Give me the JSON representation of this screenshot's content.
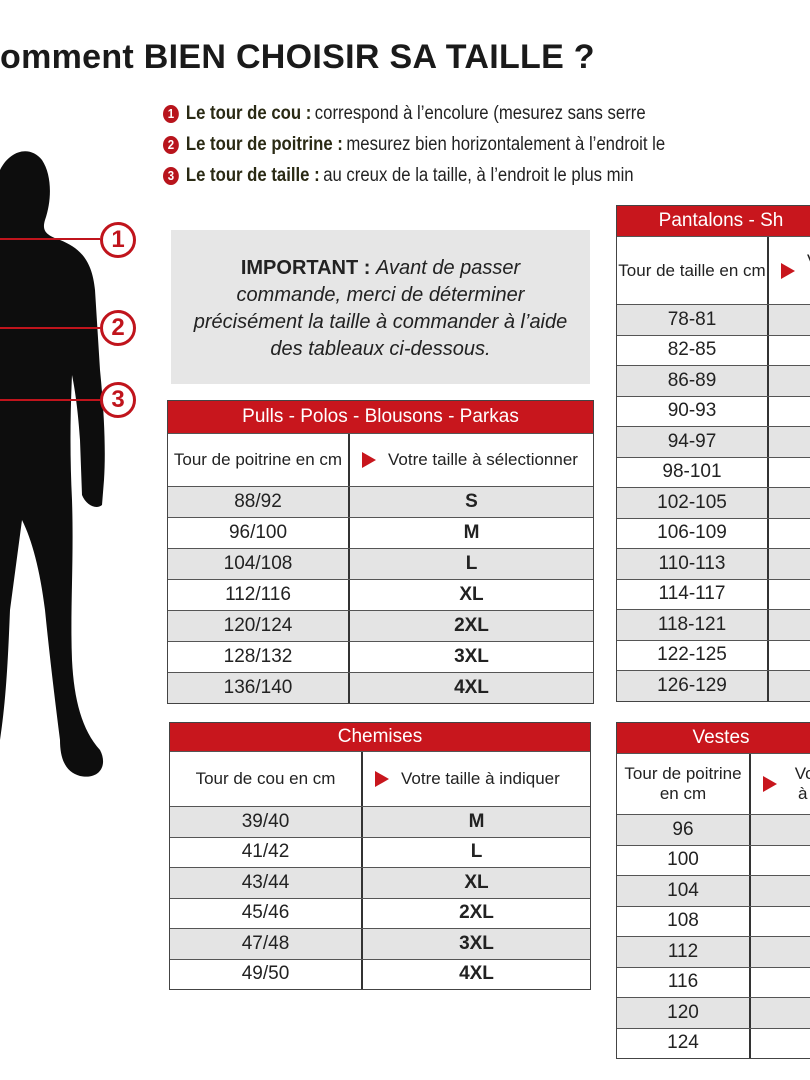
{
  "title": "omment BIEN CHOISIR SA TAILLE ?",
  "definitions": [
    {
      "num": "1",
      "label": "Le tour de cou :",
      "text": "correspond à l’encolure (mesurez sans serre"
    },
    {
      "num": "2",
      "label": "Le tour de poitrine :",
      "text": "mesurez bien horizontalement à l’endroit le"
    },
    {
      "num": "3",
      "label": "Le tour de taille :",
      "text": "au creux de la taille, à l’endroit le plus min"
    }
  ],
  "markers": [
    "1",
    "2",
    "3"
  ],
  "important": {
    "label": "IMPORTANT :",
    "text": "Avant de passer commande, merci de déterminer précisément la taille à commander à l’aide des tableaux ci-dessous."
  },
  "tables": {
    "pulls": {
      "title": "Pulls - Polos - Blousons - Parkas",
      "col1": "Tour de poitrine en cm",
      "col2": "Votre taille à sélectionner",
      "rows": [
        [
          "88/92",
          "S"
        ],
        [
          "96/100",
          "M"
        ],
        [
          "104/108",
          "L"
        ],
        [
          "112/116",
          "XL"
        ],
        [
          "120/124",
          "2XL"
        ],
        [
          "128/132",
          "3XL"
        ],
        [
          "136/140",
          "4XL"
        ]
      ]
    },
    "chemises": {
      "title": "Chemises",
      "col1": "Tour de cou en cm",
      "col2": "Votre taille à indiquer",
      "rows": [
        [
          "39/40",
          "M"
        ],
        [
          "41/42",
          "L"
        ],
        [
          "43/44",
          "XL"
        ],
        [
          "45/46",
          "2XL"
        ],
        [
          "47/48",
          "3XL"
        ],
        [
          "49/50",
          "4XL"
        ]
      ]
    },
    "pantalons": {
      "title": "Pantalons - Sh",
      "col1": "Tour de taille en cm",
      "col2": "Vo à",
      "rows": [
        [
          "78-81",
          ""
        ],
        [
          "82-85",
          ""
        ],
        [
          "86-89",
          ""
        ],
        [
          "90-93",
          ""
        ],
        [
          "94-97",
          ""
        ],
        [
          "98-101",
          ""
        ],
        [
          "102-105",
          ""
        ],
        [
          "106-109",
          ""
        ],
        [
          "110-113",
          ""
        ],
        [
          "114-117",
          ""
        ],
        [
          "118-121",
          ""
        ],
        [
          "122-125",
          ""
        ],
        [
          "126-129",
          ""
        ]
      ]
    },
    "vestes": {
      "title": "Vestes",
      "col1": "Tour de poitrine en cm",
      "col2": "Vot à i",
      "rows": [
        [
          "96",
          ""
        ],
        [
          "100",
          ""
        ],
        [
          "104",
          ""
        ],
        [
          "108",
          ""
        ],
        [
          "112",
          ""
        ],
        [
          "116",
          ""
        ],
        [
          "120",
          ""
        ],
        [
          "124",
          ""
        ]
      ]
    }
  },
  "colors": {
    "accent": "#c8161d",
    "silhouette": "#0d0d0d",
    "shade": "#e4e4e4"
  }
}
